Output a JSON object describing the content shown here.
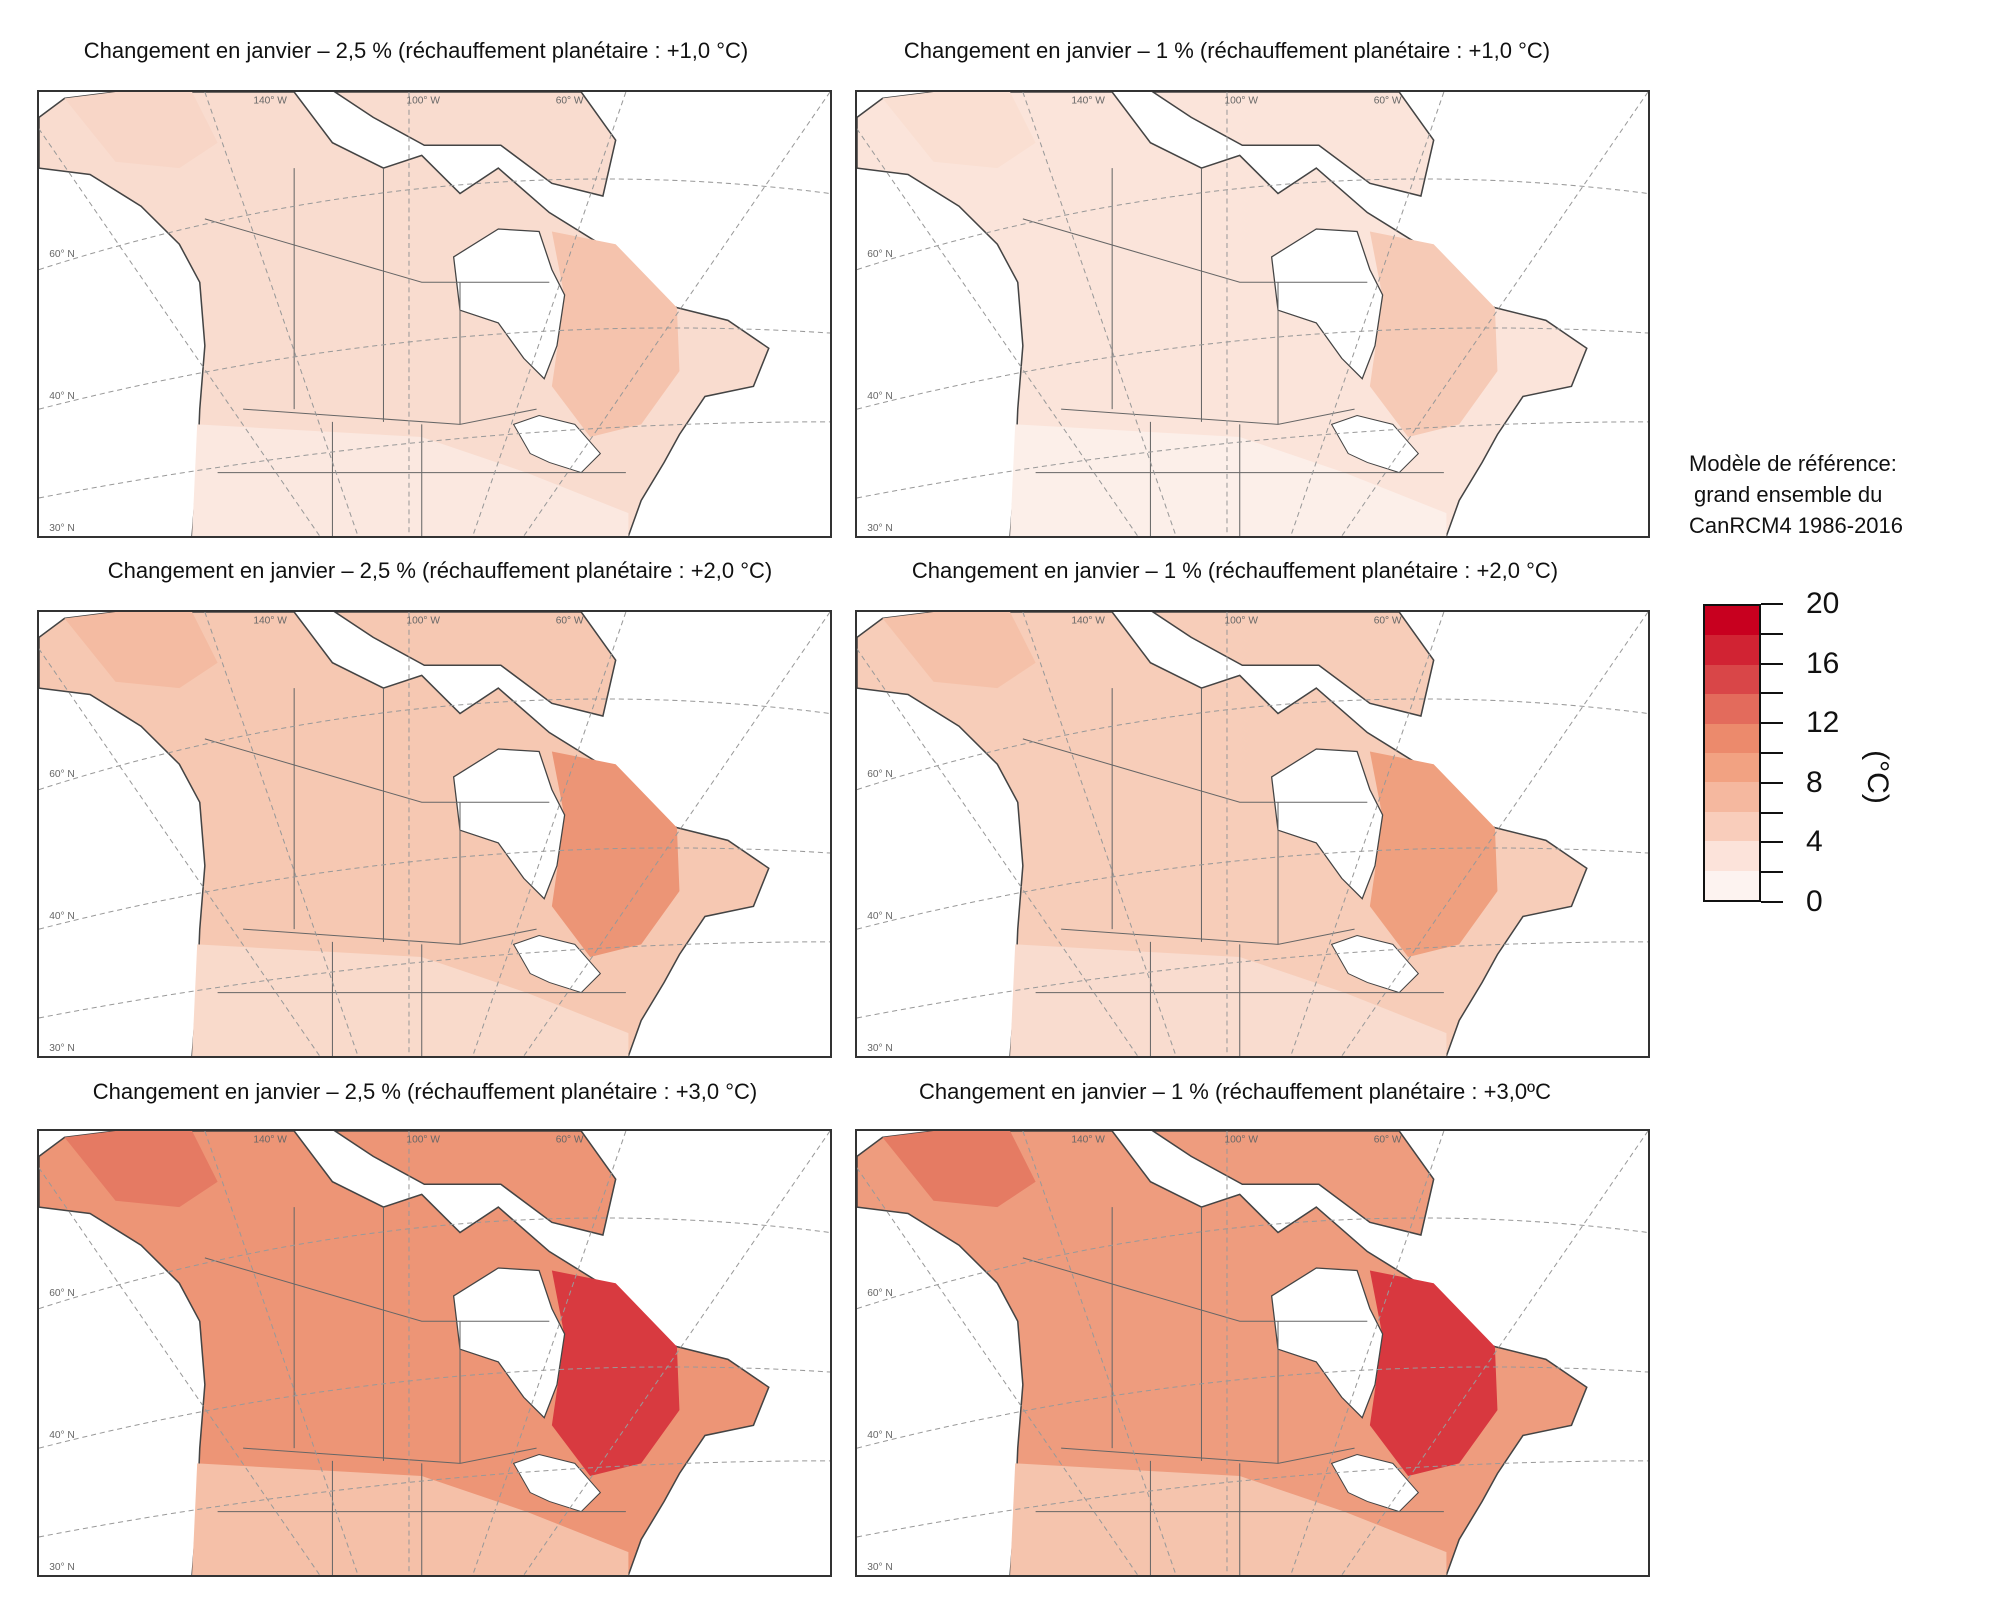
{
  "panels": [
    {
      "title": "Changement en janvier – 2,5 % (réchauffement planétaire : +1,0 °C)",
      "colors": {
        "base": "#f9dccf",
        "east": "#f5c3ad",
        "south": "#fbe8e0",
        "north": "#f8d6c7"
      }
    },
    {
      "title": "Changement en janvier – 1 % (réchauffement planétaire : +1,0 °C)",
      "colors": {
        "base": "#fbe4da",
        "east": "#f6cab6",
        "south": "#fcefe9",
        "north": "#fadfd2"
      }
    },
    {
      "title": "Changement en janvier – 2,5 % (réchauffement planétaire : +2,0 °C)",
      "colors": {
        "base": "#f6c8b2",
        "east": "#ec9576",
        "south": "#f9dacb",
        "north": "#f4bba2"
      }
    },
    {
      "title": "Changement en janvier – 1 % (réchauffement planétaire : +2,0 °C)",
      "colors": {
        "base": "#f7cdb9",
        "east": "#ef a07f",
        "south": "#f9dccf",
        "north": "#f5c1a9"
      }
    },
    {
      "title": "Changement en janvier – 2,5 % (réchauffement planétaire : +3,0 °C)",
      "colors": {
        "base": "#ed9576",
        "east": "#d83a40",
        "south": "#f5c0a8",
        "north": "#e57a63"
      }
    },
    {
      "title": "Changement en janvier – 1 % (réchauffement planétaire : +3,0ºC",
      "colors": {
        "base": "#ee9c7e",
        "east": "#d8383f",
        "south": "#f5c4ad",
        "north": "#e57b63"
      }
    }
  ],
  "map_labels": {
    "lon": [
      "140° W",
      "100° W",
      "60° W"
    ],
    "lat": [
      "60° N",
      "40° N",
      "30° N"
    ]
  },
  "legend": {
    "title": [
      "Modèle de référence:",
      "grand ensemble du",
      "CanRCM4 1986-2016"
    ],
    "ticks": [
      "0",
      "4",
      "8",
      "12",
      "16",
      "20"
    ],
    "unit": "(°C)",
    "colors": [
      "#fdf3f0",
      "#fce3da",
      "#f9cdbb",
      "#f5b89f",
      "#f2a282",
      "#ec8a6c",
      "#e36b5c",
      "#d94648",
      "#d12333",
      "#c8001f"
    ]
  }
}
